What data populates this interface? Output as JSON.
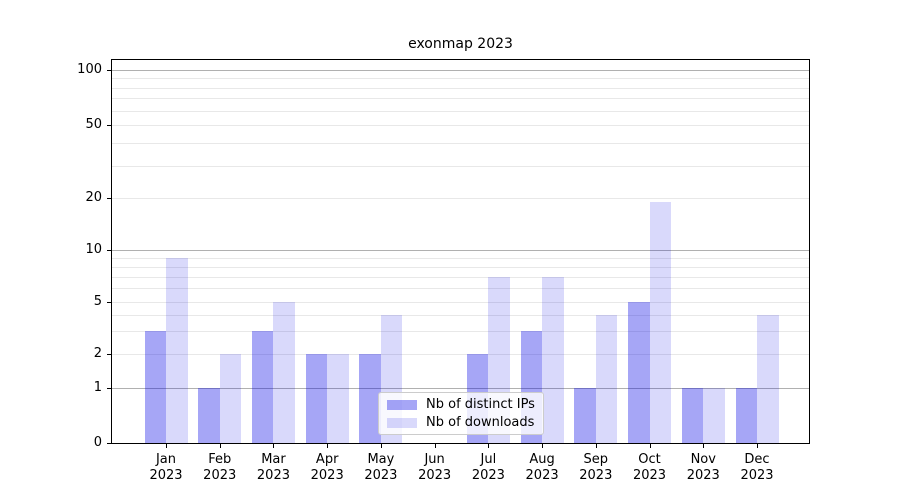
{
  "chart_data": {
    "type": "bar",
    "title": "exonmap 2023",
    "xlabel": "",
    "ylabel": "",
    "categories": [
      "Jan",
      "Feb",
      "Mar",
      "Apr",
      "May",
      "Jun",
      "Jul",
      "Aug",
      "Sep",
      "Oct",
      "Nov",
      "Dec"
    ],
    "year_label": "2023",
    "series": [
      {
        "name": "Nb of distinct IPs",
        "color": "rgba(0,0,230,0.35)",
        "hex_on_white": "#a8a8f7",
        "values": [
          3,
          1,
          3,
          2,
          2,
          0,
          2,
          3,
          1,
          5,
          1,
          1
        ]
      },
      {
        "name": "Nb of downloads",
        "color": "rgba(0,0,230,0.15)",
        "hex_on_white": "#d9d9f9",
        "values": [
          9,
          2,
          5,
          2,
          4,
          0,
          7,
          7,
          4,
          19,
          1,
          4
        ]
      }
    ],
    "yticks": [
      0,
      1,
      2,
      5,
      10,
      20,
      50,
      100
    ],
    "major_gridlines": [
      1,
      10,
      100
    ],
    "minor_gridlines": [
      2,
      3,
      4,
      5,
      6,
      7,
      8,
      9,
      20,
      30,
      40,
      50,
      60,
      70,
      80,
      90
    ],
    "scale": "symlog-like (linear 0-1, log above 1)",
    "ylim": [
      0,
      113
    ],
    "grid": true,
    "legend_position": "lower center",
    "colors": {
      "major_grid": "#b0b0b0",
      "minor_grid": "#e8e8e8",
      "spine": "#000000",
      "legend_border": "#cccccc",
      "background": "#ffffff"
    }
  }
}
